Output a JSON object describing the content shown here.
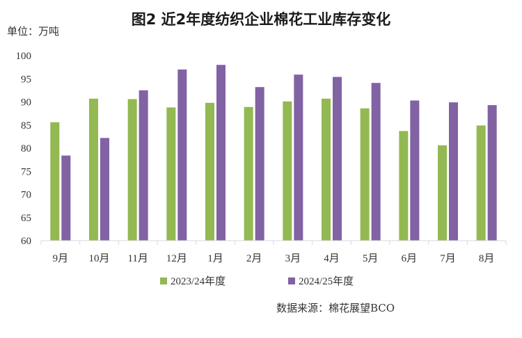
{
  "chart_data": {
    "type": "bar",
    "title": "图2 近2年度纺织企业棉花工业库存变化",
    "unit": "单位：万吨",
    "source": "数据来源：棉花展望BCO",
    "categories": [
      "9月",
      "10月",
      "11月",
      "12月",
      "1月",
      "2月",
      "3月",
      "4月",
      "5月",
      "6月",
      "7月",
      "8月"
    ],
    "ylim": [
      60,
      100
    ],
    "yticks": [
      60,
      65,
      70,
      75,
      80,
      85,
      90,
      95,
      100
    ],
    "grid": false,
    "legend_position": "bottom",
    "series": [
      {
        "name": "2023/24年度",
        "color": "#92b952",
        "values": [
          85.6,
          90.7,
          90.6,
          88.8,
          89.8,
          88.9,
          90.1,
          90.7,
          88.6,
          83.7,
          80.6,
          84.9
        ]
      },
      {
        "name": "2024/25年度",
        "color": "#8162a3",
        "values": [
          78.4,
          82.2,
          92.5,
          97.0,
          98.0,
          93.2,
          95.9,
          95.4,
          94.1,
          90.3,
          89.9,
          89.3
        ]
      }
    ]
  }
}
